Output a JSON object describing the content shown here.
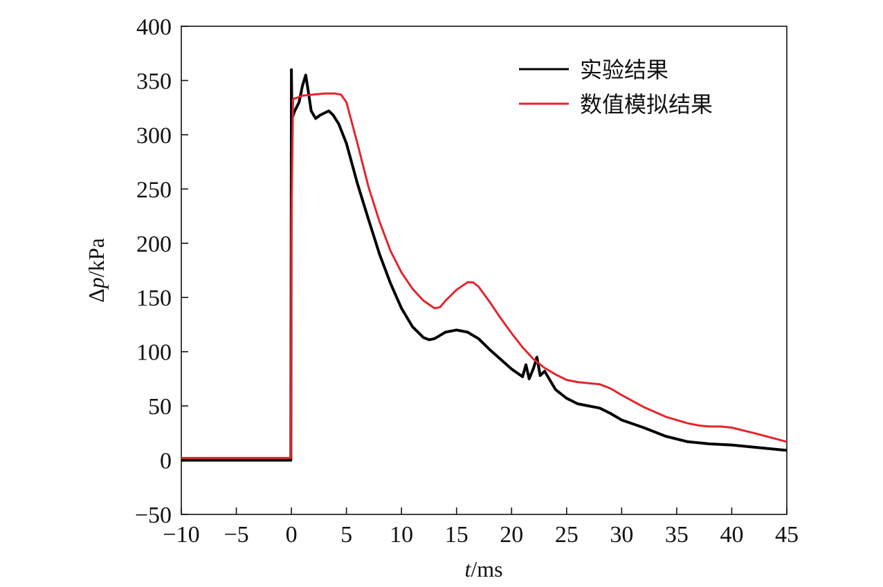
{
  "chart_data": {
    "type": "line",
    "xlabel_italic": "t",
    "xlabel_unit": "/ms",
    "ylabel_prefix": "Δ",
    "ylabel_italic": "p",
    "ylabel_unit": "/kPa",
    "xlim": [
      -10,
      45
    ],
    "ylim": [
      -50,
      400
    ],
    "xticks": [
      -10,
      -5,
      0,
      5,
      10,
      15,
      20,
      25,
      30,
      35,
      40,
      45
    ],
    "xtick_labels": [
      "−10",
      "−5",
      "0",
      "5",
      "10",
      "15",
      "20",
      "25",
      "30",
      "35",
      "40",
      "45"
    ],
    "yticks": [
      -50,
      0,
      50,
      100,
      150,
      200,
      250,
      300,
      350,
      400
    ],
    "ytick_labels": [
      "−50",
      "0",
      "50",
      "100",
      "150",
      "200",
      "250",
      "300",
      "350",
      "400"
    ],
    "grid": false,
    "legend_position": "top-right",
    "series": [
      {
        "name": "实验结果",
        "color": "#000000",
        "x": [
          -10,
          -5,
          -0.05,
          0,
          0.05,
          0.3,
          0.7,
          1.0,
          1.3,
          1.5,
          1.8,
          2.2,
          2.6,
          3.0,
          3.4,
          3.8,
          4.3,
          5.0,
          6.0,
          7.0,
          8.0,
          9.0,
          10.0,
          11.0,
          12.0,
          12.5,
          13.0,
          14.0,
          15.0,
          16.0,
          17.0,
          18.0,
          19.0,
          20.0,
          21.0,
          21.3,
          21.6,
          22.0,
          22.3,
          22.6,
          23.0,
          24.0,
          25.0,
          26.0,
          27.0,
          28.0,
          29.0,
          30.0,
          32.0,
          34.0,
          36.0,
          38.0,
          40.0,
          42.0,
          45.0
        ],
        "y": [
          0,
          0,
          0,
          360,
          315,
          322,
          330,
          345,
          355,
          342,
          322,
          315,
          318,
          320,
          322,
          318,
          310,
          292,
          255,
          222,
          190,
          163,
          140,
          123,
          113,
          111,
          112,
          118,
          120,
          118,
          112,
          102,
          93,
          84,
          77,
          88,
          75,
          85,
          95,
          78,
          82,
          65,
          57,
          52,
          50,
          48,
          43,
          37,
          30,
          22,
          17,
          15,
          14,
          12,
          9
        ]
      },
      {
        "name": "数值模拟结果",
        "color": "#e3242b",
        "x": [
          -10,
          -5,
          -0.05,
          0,
          0.15,
          0.5,
          1.0,
          2.0,
          3.0,
          4.0,
          4.5,
          5.0,
          6.0,
          7.0,
          8.0,
          9.0,
          10.0,
          11.0,
          12.0,
          13.0,
          13.5,
          14.0,
          15.0,
          16.0,
          16.5,
          17.0,
          18.0,
          19.0,
          20.0,
          21.0,
          22.0,
          23.0,
          24.0,
          25.0,
          26.0,
          27.0,
          28.0,
          29.0,
          30.0,
          32.0,
          34.0,
          36.0,
          37.0,
          38.0,
          39.0,
          40.0,
          42.0,
          45.0
        ],
        "y": [
          2,
          2,
          2,
          220,
          333,
          334,
          336,
          337,
          338,
          338,
          337,
          330,
          292,
          252,
          220,
          193,
          173,
          158,
          147,
          140,
          141,
          147,
          157,
          164,
          164,
          160,
          146,
          131,
          117,
          104,
          93,
          85,
          79,
          74,
          72,
          71,
          70,
          66,
          60,
          49,
          40,
          34,
          32,
          31,
          31,
          30,
          25,
          17
        ]
      }
    ]
  }
}
